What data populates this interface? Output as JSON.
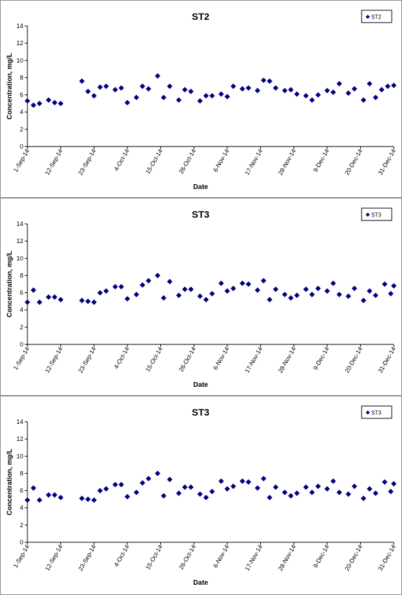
{
  "colors": {
    "marker": "#000080",
    "axis": "#000000",
    "border": "#8c8c8c"
  },
  "chart_data": [
    {
      "type": "scatter",
      "title": "ST2",
      "xlabel": "Date",
      "ylabel": "Concentration, mg/L",
      "ylim": [
        0,
        14
      ],
      "yticks": [
        "0",
        "2",
        "4",
        "6",
        "8",
        "10",
        "12",
        "14"
      ],
      "xlim": [
        "2014-09-01",
        "2014-12-31"
      ],
      "xticks": [
        "1-Sep-14",
        "12-Sep-14",
        "23-Sep-14",
        "4-Oct-14",
        "15-Oct-14",
        "26-Oct-14",
        "6-Nov-14",
        "17-Nov-14",
        "28-Nov-14",
        "9-Dec-14",
        "20-Dec-14",
        "31-Dec-14"
      ],
      "grid": false,
      "legend_position": "top-right",
      "series": [
        {
          "name": "ST2",
          "marker": "diamond",
          "points": [
            [
              "2014-09-01",
              5.3
            ],
            [
              "2014-09-03",
              4.8
            ],
            [
              "2014-09-05",
              5.0
            ],
            [
              "2014-09-08",
              5.4
            ],
            [
              "2014-09-10",
              5.1
            ],
            [
              "2014-09-12",
              5.0
            ],
            [
              "2014-09-19",
              7.6
            ],
            [
              "2014-09-21",
              6.4
            ],
            [
              "2014-09-23",
              5.9
            ],
            [
              "2014-09-25",
              6.9
            ],
            [
              "2014-09-27",
              7.0
            ],
            [
              "2014-09-30",
              6.6
            ],
            [
              "2014-10-02",
              6.8
            ],
            [
              "2014-10-04",
              5.1
            ],
            [
              "2014-10-07",
              5.7
            ],
            [
              "2014-10-09",
              7.0
            ],
            [
              "2014-10-11",
              6.7
            ],
            [
              "2014-10-14",
              8.2
            ],
            [
              "2014-10-16",
              5.7
            ],
            [
              "2014-10-18",
              7.0
            ],
            [
              "2014-10-21",
              5.4
            ],
            [
              "2014-10-23",
              6.6
            ],
            [
              "2014-10-25",
              6.4
            ],
            [
              "2014-10-28",
              5.3
            ],
            [
              "2014-10-30",
              5.9
            ],
            [
              "2014-11-01",
              5.9
            ],
            [
              "2014-11-04",
              6.1
            ],
            [
              "2014-11-06",
              5.8
            ],
            [
              "2014-11-08",
              7.0
            ],
            [
              "2014-11-11",
              6.7
            ],
            [
              "2014-11-13",
              6.8
            ],
            [
              "2014-11-16",
              6.5
            ],
            [
              "2014-11-18",
              7.7
            ],
            [
              "2014-11-20",
              7.6
            ],
            [
              "2014-11-22",
              6.8
            ],
            [
              "2014-11-25",
              6.5
            ],
            [
              "2014-11-27",
              6.6
            ],
            [
              "2014-11-29",
              6.1
            ],
            [
              "2014-12-02",
              5.9
            ],
            [
              "2014-12-04",
              5.4
            ],
            [
              "2014-12-06",
              6.0
            ],
            [
              "2014-12-09",
              6.5
            ],
            [
              "2014-12-11",
              6.3
            ],
            [
              "2014-12-13",
              7.3
            ],
            [
              "2014-12-16",
              6.2
            ],
            [
              "2014-12-18",
              6.7
            ],
            [
              "2014-12-21",
              5.4
            ],
            [
              "2014-12-23",
              7.3
            ],
            [
              "2014-12-25",
              5.7
            ],
            [
              "2014-12-27",
              6.6
            ],
            [
              "2014-12-29",
              7.0
            ],
            [
              "2014-12-31",
              7.1
            ]
          ]
        }
      ]
    },
    {
      "type": "scatter",
      "title": "ST3",
      "xlabel": "Date",
      "ylabel": "Concentration, mg/L",
      "ylim": [
        0,
        14
      ],
      "yticks": [
        "0",
        "2",
        "4",
        "6",
        "8",
        "10",
        "12",
        "14"
      ],
      "xlim": [
        "2014-09-01",
        "2014-12-31"
      ],
      "xticks": [
        "1-Sep-14",
        "12-Sep-14",
        "23-Sep-14",
        "4-Oct-14",
        "15-Oct-14",
        "26-Oct-14",
        "6-Nov-14",
        "17-Nov-14",
        "28-Nov-14",
        "9-Dec-14",
        "20-Dec-14",
        "31-Dec-14"
      ],
      "grid": false,
      "legend_position": "top-right",
      "series": [
        {
          "name": "ST3",
          "marker": "diamond",
          "points": [
            [
              "2014-09-01",
              4.9
            ],
            [
              "2014-09-03",
              6.3
            ],
            [
              "2014-09-05",
              4.9
            ],
            [
              "2014-09-08",
              5.5
            ],
            [
              "2014-09-10",
              5.5
            ],
            [
              "2014-09-12",
              5.2
            ],
            [
              "2014-09-19",
              5.1
            ],
            [
              "2014-09-21",
              5.0
            ],
            [
              "2014-09-23",
              4.9
            ],
            [
              "2014-09-25",
              6.0
            ],
            [
              "2014-09-27",
              6.2
            ],
            [
              "2014-09-30",
              6.7
            ],
            [
              "2014-10-02",
              6.7
            ],
            [
              "2014-10-04",
              5.3
            ],
            [
              "2014-10-07",
              5.8
            ],
            [
              "2014-10-09",
              6.9
            ],
            [
              "2014-10-11",
              7.4
            ],
            [
              "2014-10-14",
              8.0
            ],
            [
              "2014-10-16",
              5.4
            ],
            [
              "2014-10-18",
              7.3
            ],
            [
              "2014-10-21",
              5.7
            ],
            [
              "2014-10-23",
              6.4
            ],
            [
              "2014-10-25",
              6.4
            ],
            [
              "2014-10-28",
              5.6
            ],
            [
              "2014-10-30",
              5.2
            ],
            [
              "2014-11-01",
              5.9
            ],
            [
              "2014-11-04",
              7.1
            ],
            [
              "2014-11-06",
              6.2
            ],
            [
              "2014-11-08",
              6.5
            ],
            [
              "2014-11-11",
              7.1
            ],
            [
              "2014-11-13",
              7.0
            ],
            [
              "2014-11-16",
              6.3
            ],
            [
              "2014-11-18",
              7.4
            ],
            [
              "2014-11-20",
              5.2
            ],
            [
              "2014-11-22",
              6.4
            ],
            [
              "2014-11-25",
              5.8
            ],
            [
              "2014-11-27",
              5.4
            ],
            [
              "2014-11-29",
              5.7
            ],
            [
              "2014-12-02",
              6.4
            ],
            [
              "2014-12-04",
              5.8
            ],
            [
              "2014-12-06",
              6.5
            ],
            [
              "2014-12-09",
              6.2
            ],
            [
              "2014-12-11",
              7.1
            ],
            [
              "2014-12-13",
              5.8
            ],
            [
              "2014-12-16",
              5.6
            ],
            [
              "2014-12-18",
              6.5
            ],
            [
              "2014-12-21",
              5.1
            ],
            [
              "2014-12-23",
              6.2
            ],
            [
              "2014-12-25",
              5.7
            ],
            [
              "2014-12-28",
              7.0
            ],
            [
              "2014-12-30",
              5.9
            ],
            [
              "2014-12-31",
              6.8
            ]
          ]
        }
      ]
    },
    {
      "type": "scatter",
      "title": "ST3",
      "xlabel": "Date",
      "ylabel": "Concentration, mg/L",
      "ylim": [
        0,
        14
      ],
      "yticks": [
        "0",
        "2",
        "4",
        "6",
        "8",
        "10",
        "12",
        "14"
      ],
      "xlim": [
        "2014-09-01",
        "2014-12-31"
      ],
      "xticks": [
        "1-Sep-14",
        "12-Sep-14",
        "23-Sep-14",
        "4-Oct-14",
        "15-Oct-14",
        "26-Oct-14",
        "6-Nov-14",
        "17-Nov-14",
        "28-Nov-14",
        "9-Dec-14",
        "20-Dec-14",
        "31-Dec-14"
      ],
      "grid": false,
      "legend_position": "top-right",
      "series": [
        {
          "name": "ST3",
          "marker": "diamond",
          "points": [
            [
              "2014-09-01",
              4.9
            ],
            [
              "2014-09-03",
              6.3
            ],
            [
              "2014-09-05",
              4.9
            ],
            [
              "2014-09-08",
              5.5
            ],
            [
              "2014-09-10",
              5.5
            ],
            [
              "2014-09-12",
              5.2
            ],
            [
              "2014-09-19",
              5.1
            ],
            [
              "2014-09-21",
              5.0
            ],
            [
              "2014-09-23",
              4.9
            ],
            [
              "2014-09-25",
              6.0
            ],
            [
              "2014-09-27",
              6.2
            ],
            [
              "2014-09-30",
              6.7
            ],
            [
              "2014-10-02",
              6.7
            ],
            [
              "2014-10-04",
              5.3
            ],
            [
              "2014-10-07",
              5.8
            ],
            [
              "2014-10-09",
              6.9
            ],
            [
              "2014-10-11",
              7.4
            ],
            [
              "2014-10-14",
              8.0
            ],
            [
              "2014-10-16",
              5.4
            ],
            [
              "2014-10-18",
              7.3
            ],
            [
              "2014-10-21",
              5.7
            ],
            [
              "2014-10-23",
              6.4
            ],
            [
              "2014-10-25",
              6.4
            ],
            [
              "2014-10-28",
              5.6
            ],
            [
              "2014-10-30",
              5.2
            ],
            [
              "2014-11-01",
              5.9
            ],
            [
              "2014-11-04",
              7.1
            ],
            [
              "2014-11-06",
              6.2
            ],
            [
              "2014-11-08",
              6.5
            ],
            [
              "2014-11-11",
              7.1
            ],
            [
              "2014-11-13",
              7.0
            ],
            [
              "2014-11-16",
              6.3
            ],
            [
              "2014-11-18",
              7.4
            ],
            [
              "2014-11-20",
              5.2
            ],
            [
              "2014-11-22",
              6.4
            ],
            [
              "2014-11-25",
              5.8
            ],
            [
              "2014-11-27",
              5.4
            ],
            [
              "2014-11-29",
              5.7
            ],
            [
              "2014-12-02",
              6.4
            ],
            [
              "2014-12-04",
              5.8
            ],
            [
              "2014-12-06",
              6.5
            ],
            [
              "2014-12-09",
              6.2
            ],
            [
              "2014-12-11",
              7.1
            ],
            [
              "2014-12-13",
              5.8
            ],
            [
              "2014-12-16",
              5.6
            ],
            [
              "2014-12-18",
              6.5
            ],
            [
              "2014-12-21",
              5.1
            ],
            [
              "2014-12-23",
              6.2
            ],
            [
              "2014-12-25",
              5.7
            ],
            [
              "2014-12-28",
              7.0
            ],
            [
              "2014-12-30",
              5.9
            ],
            [
              "2014-12-31",
              6.8
            ]
          ]
        }
      ]
    }
  ]
}
